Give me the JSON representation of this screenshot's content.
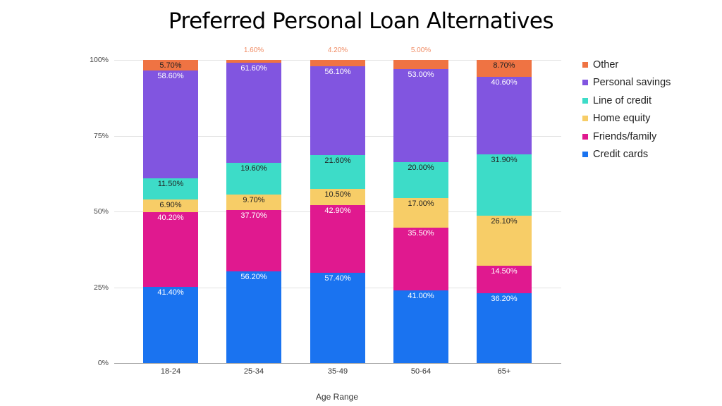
{
  "chart_data": {
    "type": "bar",
    "stacked": true,
    "normalized_100_percent": true,
    "title": "Preferred Personal Loan Alternatives",
    "xlabel": "Age Range",
    "ylabel": "",
    "ylim": [
      0,
      100
    ],
    "yticks": [
      "0%",
      "25%",
      "50%",
      "75%",
      "100%"
    ],
    "grid": true,
    "legend_position": "right",
    "categories": [
      "18-24",
      "25-34",
      "35-49",
      "50-64",
      "65+"
    ],
    "series": [
      {
        "name": "Credit cards",
        "color": "#1a73f0",
        "label_color": "#ffffff",
        "values": [
          41.4,
          56.2,
          57.4,
          41.0,
          36.2
        ],
        "labels": [
          "41.40%",
          "56.20%",
          "57.40%",
          "41.00%",
          "36.20%"
        ]
      },
      {
        "name": "Friends/family",
        "color": "#e0198f",
        "label_color": "#ffffff",
        "values": [
          40.2,
          37.7,
          42.9,
          35.5,
          14.5
        ],
        "labels": [
          "40.20%",
          "37.70%",
          "42.90%",
          "35.50%",
          "14.50%"
        ]
      },
      {
        "name": "Home equity",
        "color": "#f7cd67",
        "label_color": "#222222",
        "values": [
          6.9,
          9.7,
          10.5,
          17.0,
          26.1
        ],
        "labels": [
          "6.90%",
          "9.70%",
          "10.50%",
          "17.00%",
          "26.10%"
        ]
      },
      {
        "name": "Line of credit",
        "color": "#3ddcc8",
        "label_color": "#222222",
        "values": [
          11.5,
          19.6,
          21.6,
          20.0,
          31.9
        ],
        "labels": [
          "11.50%",
          "19.60%",
          "21.60%",
          "20.00%",
          "31.90%"
        ]
      },
      {
        "name": "Personal savings",
        "color": "#8155e0",
        "label_color": "#ffffff",
        "values": [
          58.6,
          61.6,
          56.1,
          53.0,
          40.6
        ],
        "labels": [
          "58.60%",
          "61.60%",
          "56.10%",
          "53.00%",
          "40.60%"
        ]
      },
      {
        "name": "Other",
        "color": "#ef7343",
        "label_color": "#222222",
        "outside_label_color": "#f08a62",
        "values": [
          5.7,
          1.6,
          4.2,
          5.0,
          8.7
        ],
        "labels": [
          "5.70%",
          "1.60%",
          "4.20%",
          "5.00%",
          "8.70%"
        ],
        "label_outside": [
          false,
          true,
          true,
          true,
          false
        ]
      }
    ]
  },
  "legend": {
    "items": [
      {
        "label": "Other",
        "color": "#ef7343"
      },
      {
        "label": "Personal savings",
        "color": "#8155e0"
      },
      {
        "label": "Line of credit",
        "color": "#3ddcc8"
      },
      {
        "label": "Home equity",
        "color": "#f7cd67"
      },
      {
        "label": "Friends/family",
        "color": "#e0198f"
      },
      {
        "label": "Credit cards",
        "color": "#1a73f0"
      }
    ]
  }
}
